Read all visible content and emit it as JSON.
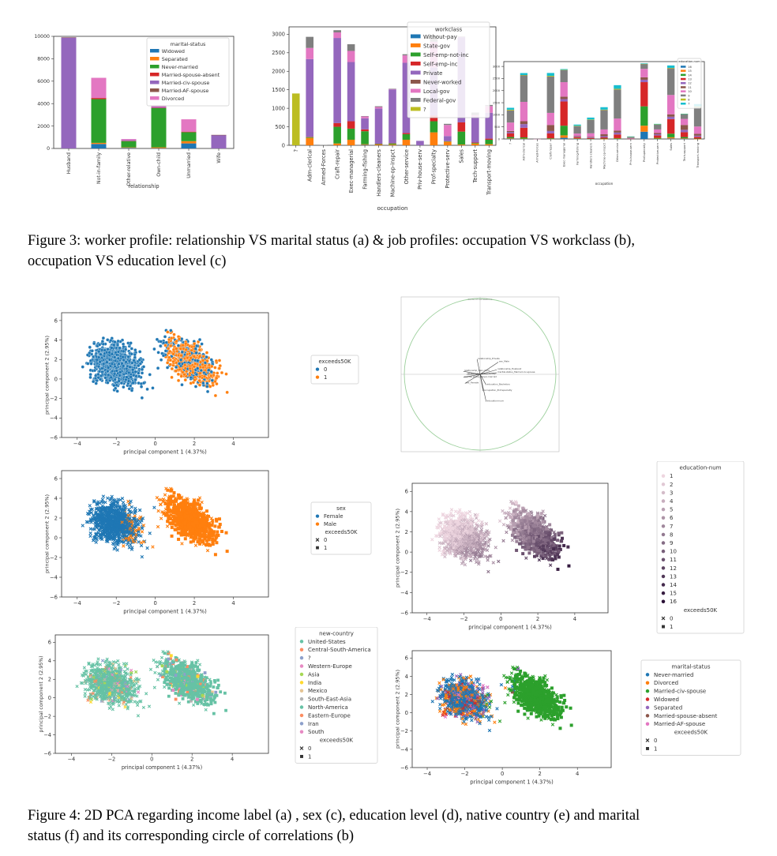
{
  "figure3": {
    "caption_line1": "Figure 3: worker profile: relationship VS marital status (a) & job profiles: occupation VS workclass (b),",
    "caption_line2": "occupation VS education level (c)"
  },
  "figure4": {
    "caption_line1": "Figure 4: 2D PCA regarding income label (a) , sex (c), education level (d), native country (e) and marital",
    "caption_line2": "status (f) and its corresponding circle of correlations (b)"
  },
  "colors": {
    "blue": "#1f77b4",
    "orange": "#ff7f0e",
    "green": "#2ca02c",
    "red": "#d62728",
    "purple": "#9467bd",
    "brown": "#8c564b",
    "pink": "#e377c2",
    "gray": "#7f7f7f",
    "olive": "#bcbd22"
  },
  "chart_data": [
    {
      "id": "fig3a",
      "type": "bar",
      "stacked": true,
      "xlabel": "relationship",
      "ylabel": "",
      "ylim": [
        0,
        10000
      ],
      "yticks": [
        0,
        2000,
        4000,
        6000,
        8000,
        10000
      ],
      "categories": [
        "Husband",
        "Not-in-family",
        "Other-relative",
        "Own-child",
        "Unmarried",
        "Wife"
      ],
      "legend_title": "marital-status",
      "legend_position": "top-right",
      "series": [
        {
          "name": "Widowed",
          "color": "#1f77b4",
          "values": [
            0,
            400,
            50,
            20,
            450,
            0
          ]
        },
        {
          "name": "Separated",
          "color": "#ff7f0e",
          "values": [
            0,
            100,
            50,
            80,
            200,
            0
          ]
        },
        {
          "name": "Never-married",
          "color": "#2ca02c",
          "values": [
            0,
            3900,
            550,
            3500,
            800,
            0
          ]
        },
        {
          "name": "Married-spouse-absent",
          "color": "#d62728",
          "values": [
            0,
            100,
            30,
            30,
            50,
            0
          ]
        },
        {
          "name": "Married-civ-spouse",
          "color": "#9467bd",
          "values": [
            9900,
            0,
            80,
            80,
            0,
            1200
          ]
        },
        {
          "name": "Married-AF-spouse",
          "color": "#8c564b",
          "values": [
            10,
            0,
            0,
            0,
            0,
            10
          ]
        },
        {
          "name": "Divorced",
          "color": "#e377c2",
          "values": [
            0,
            1800,
            80,
            100,
            1100,
            0
          ]
        }
      ]
    },
    {
      "id": "fig3b",
      "type": "bar",
      "stacked": true,
      "xlabel": "occupation",
      "ylabel": "",
      "ylim": [
        0,
        3200
      ],
      "yticks": [
        0,
        500,
        1000,
        1500,
        2000,
        2500,
        3000
      ],
      "categories": [
        "?",
        "Adm-clerical",
        "Armed-Forces",
        "Craft-repair",
        "Exec-managerial",
        "Farming-fishing",
        "Handlers-cleaners",
        "Machine-op-inspct",
        "Other-service",
        "Priv-house-serv",
        "Prof-specialty",
        "Protective-serv",
        "Sales",
        "Tech-support",
        "Transport-moving"
      ],
      "legend_title": "workclass",
      "legend_position": "top-right",
      "series": [
        {
          "name": "Without-pay",
          "color": "#1f77b4",
          "values": [
            0,
            0,
            0,
            0,
            0,
            10,
            0,
            0,
            0,
            0,
            0,
            0,
            0,
            0,
            0
          ]
        },
        {
          "name": "State-gov",
          "color": "#ff7f0e",
          "values": [
            0,
            200,
            0,
            50,
            150,
            20,
            20,
            20,
            150,
            0,
            350,
            100,
            20,
            50,
            30
          ]
        },
        {
          "name": "Self-emp-not-inc",
          "color": "#2ca02c",
          "values": [
            0,
            20,
            0,
            450,
            300,
            350,
            20,
            30,
            150,
            0,
            300,
            10,
            350,
            20,
            120
          ]
        },
        {
          "name": "Self-emp-inc",
          "color": "#d62728",
          "values": [
            0,
            10,
            0,
            100,
            200,
            50,
            5,
            10,
            30,
            0,
            150,
            0,
            250,
            5,
            30
          ]
        },
        {
          "name": "Private",
          "color": "#9467bd",
          "values": [
            0,
            2100,
            0,
            2300,
            1600,
            300,
            950,
            1450,
            1900,
            120,
            1300,
            140,
            2300,
            700,
            700
          ]
        },
        {
          "name": "Never-worked",
          "color": "#8c564b",
          "values": [
            0,
            0,
            0,
            0,
            0,
            0,
            0,
            0,
            0,
            0,
            0,
            0,
            0,
            0,
            0
          ]
        },
        {
          "name": "Local-gov",
          "color": "#e377c2",
          "values": [
            0,
            300,
            0,
            150,
            300,
            50,
            40,
            10,
            200,
            0,
            700,
            300,
            10,
            40,
            180
          ]
        },
        {
          "name": "Federal-gov",
          "color": "#7f7f7f",
          "values": [
            0,
            300,
            10,
            60,
            180,
            10,
            20,
            10,
            30,
            0,
            160,
            30,
            10,
            70,
            30
          ]
        },
        {
          "name": "?",
          "color": "#bcbd22",
          "values": [
            1400,
            0,
            0,
            0,
            0,
            0,
            0,
            0,
            0,
            0,
            0,
            0,
            0,
            0,
            0
          ]
        }
      ]
    },
    {
      "id": "fig3c",
      "type": "bar",
      "stacked": true,
      "xlabel": "occupation",
      "ylabel": "",
      "ylim": [
        0,
        3200
      ],
      "yticks": [
        0,
        500,
        1000,
        1500,
        2000,
        2500,
        3000
      ],
      "categories": [
        "?",
        "Adm-clerical",
        "Armed-Forces",
        "Craft-repair",
        "Exec-managerial",
        "Farming-fishing",
        "Handlers-cleaners",
        "Machine-op-inspct",
        "Other-service",
        "Priv-house-serv",
        "Prof-specialty",
        "Protective-serv",
        "Sales",
        "Tech-support",
        "Transport-moving"
      ],
      "legend_title": "education-num",
      "legend_position": "top-right",
      "series": [
        {
          "name": "16",
          "color": "#1f77b4",
          "values": [
            10,
            5,
            0,
            5,
            50,
            5,
            0,
            0,
            5,
            0,
            300,
            5,
            20,
            10,
            0
          ]
        },
        {
          "name": "15",
          "color": "#ff7f0e",
          "values": [
            20,
            10,
            0,
            5,
            100,
            10,
            0,
            5,
            10,
            0,
            250,
            10,
            50,
            20,
            5
          ]
        },
        {
          "name": "14",
          "color": "#2ca02c",
          "values": [
            50,
            50,
            0,
            20,
            400,
            10,
            5,
            10,
            20,
            0,
            800,
            30,
            150,
            50,
            10
          ]
        },
        {
          "name": "13",
          "color": "#d62728",
          "values": [
            150,
            400,
            1,
            200,
            1000,
            50,
            30,
            50,
            150,
            10,
            1000,
            100,
            600,
            200,
            70
          ]
        },
        {
          "name": "12",
          "color": "#9467bd",
          "values": [
            50,
            150,
            0,
            100,
            100,
            20,
            20,
            50,
            80,
            5,
            100,
            50,
            100,
            100,
            50
          ]
        },
        {
          "name": "11",
          "color": "#8c564b",
          "values": [
            50,
            120,
            0,
            250,
            100,
            30,
            30,
            80,
            80,
            5,
            100,
            50,
            100,
            200,
            80
          ]
        },
        {
          "name": "10",
          "color": "#e377c2",
          "values": [
            350,
            800,
            1,
            500,
            600,
            100,
            150,
            200,
            500,
            20,
            350,
            150,
            800,
            250,
            300
          ]
        },
        {
          "name": "9",
          "color": "#7f7f7f",
          "values": [
            500,
            1100,
            5,
            1500,
            500,
            300,
            550,
            800,
            1200,
            50,
            200,
            200,
            1100,
            200,
            800
          ]
        },
        {
          "name": "8",
          "color": "#bcbd22",
          "values": [
            30,
            10,
            0,
            30,
            10,
            20,
            20,
            20,
            30,
            5,
            10,
            10,
            20,
            5,
            30
          ]
        },
        {
          "name": "7",
          "color": "#17becf",
          "values": [
            80,
            80,
            0,
            120,
            30,
            50,
            80,
            100,
            150,
            10,
            20,
            20,
            100,
            10,
            100
          ]
        }
      ]
    },
    {
      "id": "fig4a",
      "type": "scatter",
      "xlabel": "principal component 1 (4.37%)",
      "ylabel": "principal component 2 (2.95%)",
      "xlim": [
        -4.8,
        5.8
      ],
      "ylim": [
        -6,
        6.8
      ],
      "xticks": [
        -4,
        -2,
        0,
        2,
        4
      ],
      "yticks": [
        -6,
        -4,
        -2,
        0,
        2,
        4,
        6
      ],
      "legend_title": "exceeds50K",
      "legend": [
        {
          "label": "0",
          "color": "#1f77b4"
        },
        {
          "label": "1",
          "color": "#ff7f0e"
        }
      ]
    },
    {
      "id": "fig4b",
      "type": "scatter",
      "title": "Circle of correlations",
      "xlim": [
        -1,
        1
      ],
      "ylim": [
        -1,
        1
      ],
      "vectors": [
        {
          "label": "relationship_Private",
          "x": -0.04,
          "y": 0.2
        },
        {
          "label": "sex_Male",
          "x": 0.24,
          "y": 0.16
        },
        {
          "label": "relationship_Husband",
          "x": 0.22,
          "y": 0.06
        },
        {
          "label": "relationship_Own-child",
          "x": -0.22,
          "y": 0.04
        },
        {
          "label": "marital-status_Married-civ-spouse",
          "x": 0.22,
          "y": 0.02
        },
        {
          "label": "relationship_Not-in-family",
          "x": -0.18,
          "y": 0.0
        },
        {
          "label": "marital-status_Never-married",
          "x": -0.22,
          "y": -0.04
        },
        {
          "label": "sex_Female",
          "x": -0.2,
          "y": -0.12
        },
        {
          "label": "education_Bachelors",
          "x": 0.08,
          "y": -0.14
        },
        {
          "label": "occupation_Prof-specialty",
          "x": 0.04,
          "y": -0.22
        },
        {
          "label": "education-num",
          "x": 0.08,
          "y": -0.36
        }
      ]
    },
    {
      "id": "fig4c",
      "type": "scatter",
      "xlabel": "principal component 1 (4.37%)",
      "ylabel": "principal component 2 (2.95%)",
      "xlim": [
        -4.8,
        5.8
      ],
      "ylim": [
        -6,
        6.8
      ],
      "xticks": [
        -4,
        -2,
        0,
        2,
        4
      ],
      "yticks": [
        -6,
        -4,
        -2,
        0,
        2,
        4,
        6
      ],
      "legend_title": "sex",
      "legend": [
        {
          "label": "Female",
          "color": "#1f77b4"
        },
        {
          "label": "Male",
          "color": "#ff7f0e"
        }
      ],
      "legend_title2": "exceeds50K",
      "legend2": [
        {
          "label": "0",
          "marker": "x"
        },
        {
          "label": "1",
          "marker": "square"
        }
      ]
    },
    {
      "id": "fig4d",
      "type": "scatter",
      "xlabel": "principal component 1 (4.37%)",
      "ylabel": "principal component 2 (2.95%)",
      "xlim": [
        -4.8,
        5.8
      ],
      "ylim": [
        -6,
        6.8
      ],
      "xticks": [
        -4,
        -2,
        0,
        2,
        4
      ],
      "yticks": [
        -6,
        -4,
        -2,
        0,
        2,
        4,
        6
      ],
      "legend_title": "education-num",
      "legend": [
        "1",
        "2",
        "3",
        "4",
        "5",
        "6",
        "7",
        "8",
        "9",
        "10",
        "11",
        "12",
        "13",
        "14",
        "15",
        "16"
      ],
      "legend_title2": "exceeds50K",
      "legend2": [
        {
          "label": "0",
          "marker": "x"
        },
        {
          "label": "1",
          "marker": "square"
        }
      ]
    },
    {
      "id": "fig4e",
      "type": "scatter",
      "xlabel": "principal component 1 (4.37%)",
      "ylabel": "principal component 2 (2.95%)",
      "xlim": [
        -4.8,
        5.8
      ],
      "ylim": [
        -6,
        6.8
      ],
      "xticks": [
        -4,
        -2,
        0,
        2,
        4
      ],
      "yticks": [
        -6,
        -4,
        -2,
        0,
        2,
        4,
        6
      ],
      "legend_title": "new-country",
      "legend": [
        {
          "label": "United-States",
          "color": "#66c2a5"
        },
        {
          "label": "Central-South-America",
          "color": "#fc8d62"
        },
        {
          "label": "?",
          "color": "#8da0cb"
        },
        {
          "label": "Western-Europe",
          "color": "#e78ac3"
        },
        {
          "label": "Asia",
          "color": "#a6d854"
        },
        {
          "label": "India",
          "color": "#ffd92f"
        },
        {
          "label": "Mexico",
          "color": "#e5c494"
        },
        {
          "label": "South-East-Asia",
          "color": "#b3b3b3"
        },
        {
          "label": "North-America",
          "color": "#66c2a5"
        },
        {
          "label": "Eastern-Europe",
          "color": "#fc8d62"
        },
        {
          "label": "Iran",
          "color": "#8da0cb"
        },
        {
          "label": "South",
          "color": "#e78ac3"
        }
      ],
      "legend_title2": "exceeds50K",
      "legend2": [
        {
          "label": "0",
          "marker": "x"
        },
        {
          "label": "1",
          "marker": "square"
        }
      ]
    },
    {
      "id": "fig4f",
      "type": "scatter",
      "xlabel": "principal component 1 (4.37%)",
      "ylabel": "principal component 2 (2.95%)",
      "xlim": [
        -4.8,
        5.8
      ],
      "ylim": [
        -6,
        6.8
      ],
      "xticks": [
        -4,
        -2,
        0,
        2,
        4
      ],
      "yticks": [
        -6,
        -4,
        -2,
        0,
        2,
        4,
        6
      ],
      "legend_title": "marital-status",
      "legend": [
        {
          "label": "Never-married",
          "color": "#1f77b4"
        },
        {
          "label": "Divorced",
          "color": "#ff7f0e"
        },
        {
          "label": "Married-civ-spouse",
          "color": "#2ca02c"
        },
        {
          "label": "Widowed",
          "color": "#d62728"
        },
        {
          "label": "Separated",
          "color": "#9467bd"
        },
        {
          "label": "Married-spouse-absent",
          "color": "#8c564b"
        },
        {
          "label": "Married-AF-spouse",
          "color": "#e377c2"
        }
      ],
      "legend_title2": "exceeds50K",
      "legend2": [
        {
          "label": "0",
          "marker": "x"
        },
        {
          "label": "1",
          "marker": "square"
        }
      ]
    }
  ]
}
